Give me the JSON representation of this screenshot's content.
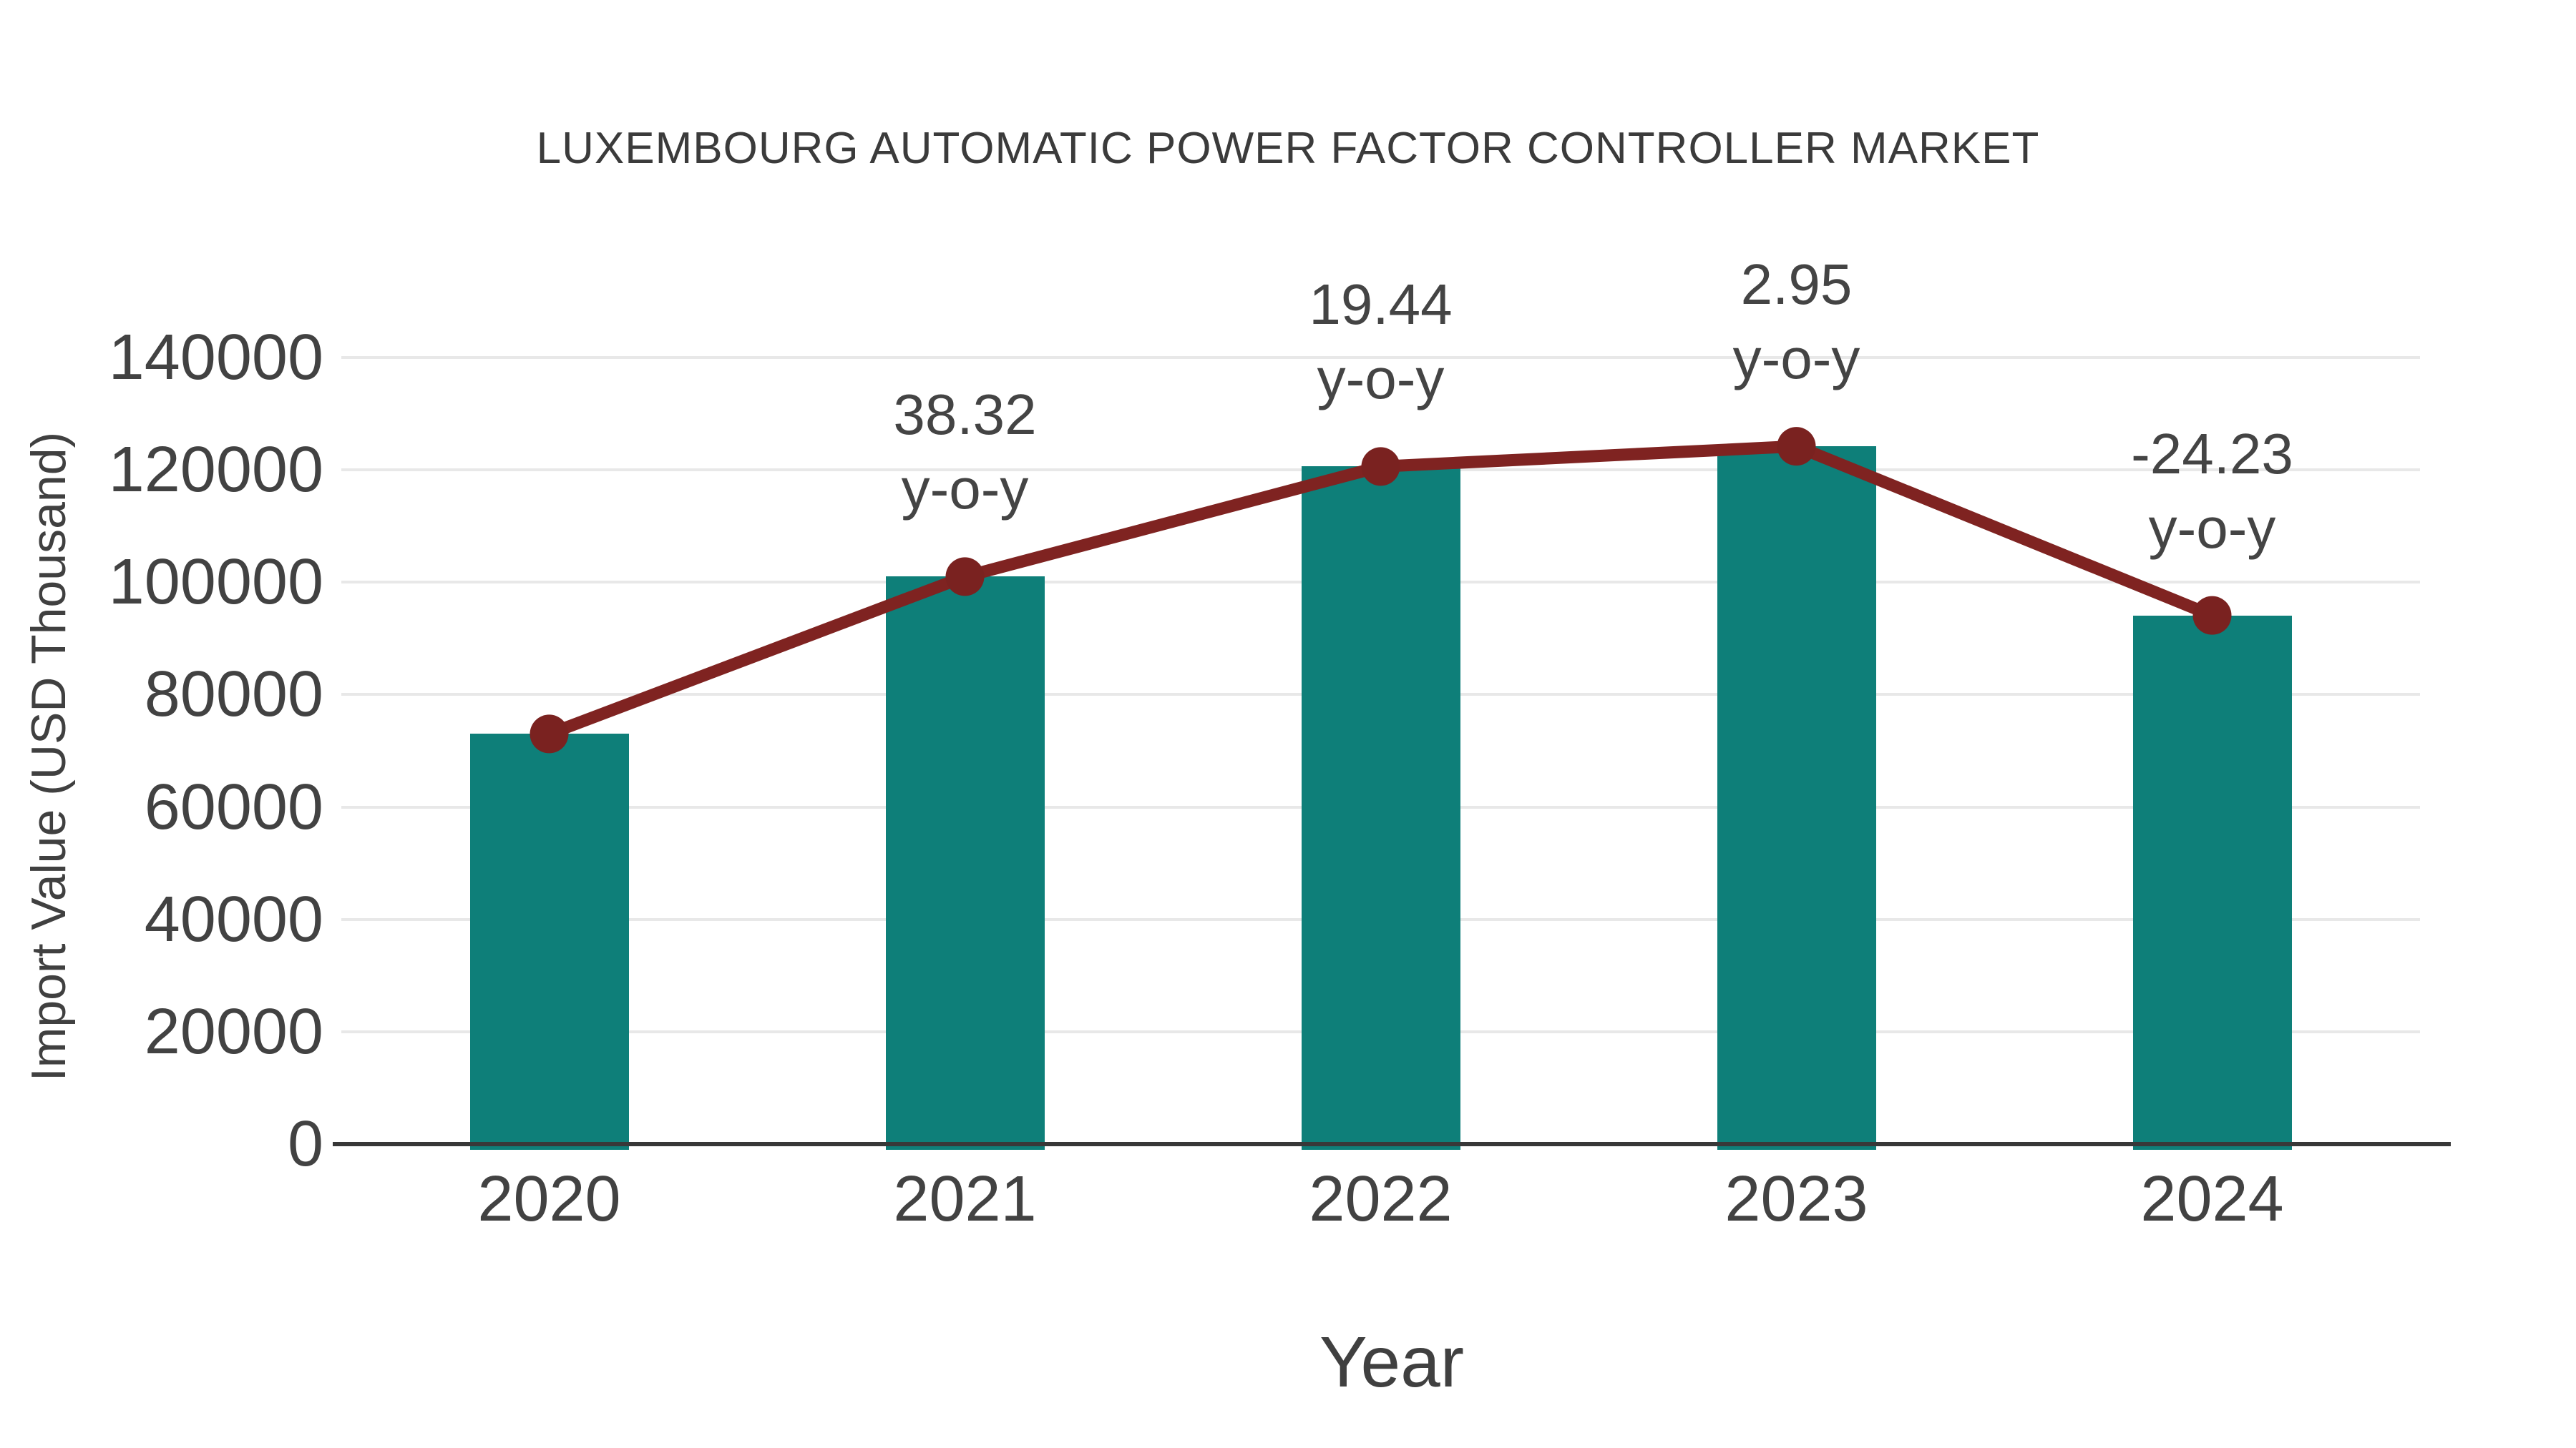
{
  "title": "LUXEMBOURG AUTOMATIC POWER FACTOR CONTROLLER MARKET",
  "axes": {
    "x_title": "Year",
    "y_title": "Import Value (USD Thousand)"
  },
  "colors": {
    "bar": "#0e7f79",
    "line": "#7f2321",
    "marker": "#7a2220",
    "grid": "#e8e8e8",
    "axis_line": "#383838",
    "text": "#424242"
  },
  "chart_data": {
    "type": "bar",
    "title": "LUXEMBOURG AUTOMATIC POWER FACTOR CONTROLLER MARKET",
    "xlabel": "Year",
    "ylabel": "Import Value (USD Thousand)",
    "categories": [
      "2020",
      "2021",
      "2022",
      "2023",
      "2024"
    ],
    "series": [
      {
        "name": "Import Value (USD Thousand)",
        "type": "bar",
        "values": [
          73000,
          101000,
          120600,
          124200,
          94100
        ]
      },
      {
        "name": "y-o-y trend line",
        "type": "line",
        "values": [
          73000,
          101000,
          120600,
          124200,
          94100
        ]
      }
    ],
    "annotations": [
      "",
      "38.32",
      "19.44",
      "2.95",
      "-24.23"
    ],
    "annotation_suffix": "y-o-y",
    "ylim": [
      0,
      140000
    ],
    "yticks": [
      0,
      20000,
      40000,
      60000,
      80000,
      100000,
      120000,
      140000
    ],
    "grid": true,
    "legend": "none"
  }
}
